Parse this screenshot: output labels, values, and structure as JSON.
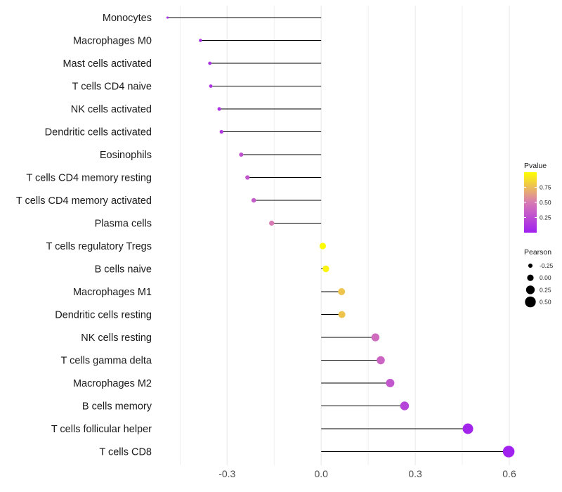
{
  "chart_data": {
    "type": "lollipop",
    "orientation": "horizontal",
    "xlim": [
      -0.5,
      0.6
    ],
    "xticks": [
      {
        "value": -0.3,
        "label": "-0.3"
      },
      {
        "value": 0.0,
        "label": "0.0"
      },
      {
        "value": 0.3,
        "label": "0.3"
      },
      {
        "value": 0.6,
        "label": "0.6"
      }
    ],
    "minor_gridlines": [
      -0.45,
      -0.15,
      0.15,
      0.45
    ],
    "points": [
      {
        "label": "Monocytes",
        "value": -0.49,
        "pvalue": 0.02
      },
      {
        "label": "Macrophages M0",
        "value": -0.385,
        "pvalue": 0.08
      },
      {
        "label": "Mast cells activated",
        "value": -0.355,
        "pvalue": 0.1
      },
      {
        "label": "T cells CD4 naive",
        "value": -0.352,
        "pvalue": 0.11
      },
      {
        "label": "NK cells activated",
        "value": -0.325,
        "pvalue": 0.12
      },
      {
        "label": "Dendritic cells activated",
        "value": -0.318,
        "pvalue": 0.13
      },
      {
        "label": "Eosinophils",
        "value": -0.255,
        "pvalue": 0.28
      },
      {
        "label": "T cells CD4 memory resting",
        "value": -0.235,
        "pvalue": 0.3
      },
      {
        "label": "T cells CD4 memory activated",
        "value": -0.215,
        "pvalue": 0.33
      },
      {
        "label": "Plasma cells",
        "value": -0.158,
        "pvalue": 0.5
      },
      {
        "label": "T cells regulatory  Tregs ",
        "value": 0.005,
        "pvalue": 0.99
      },
      {
        "label": "B cells naive",
        "value": 0.015,
        "pvalue": 0.96
      },
      {
        "label": "Macrophages M1",
        "value": 0.065,
        "pvalue": 0.78
      },
      {
        "label": "Dendritic cells resting",
        "value": 0.066,
        "pvalue": 0.78
      },
      {
        "label": "NK cells resting",
        "value": 0.173,
        "pvalue": 0.42
      },
      {
        "label": "T cells gamma delta",
        "value": 0.19,
        "pvalue": 0.38
      },
      {
        "label": "Macrophages M2",
        "value": 0.22,
        "pvalue": 0.3
      },
      {
        "label": "B cells memory",
        "value": 0.266,
        "pvalue": 0.2
      },
      {
        "label": "T cells follicular helper",
        "value": 0.468,
        "pvalue": 0.03
      },
      {
        "label": "T cells CD8",
        "value": 0.598,
        "pvalue": 0.01
      }
    ],
    "legend_pvalue": {
      "title": "Pvalue",
      "ticks": [
        {
          "value": 0.25,
          "label": "0.25"
        },
        {
          "value": 0.5,
          "label": "0.50"
        },
        {
          "value": 0.75,
          "label": "0.75"
        }
      ],
      "range": [
        0.0,
        1.0
      ]
    },
    "legend_pearson": {
      "title": "Pearson",
      "entries": [
        {
          "value": -0.25,
          "label": "-0.25"
        },
        {
          "value": 0.0,
          "label": "0.00"
        },
        {
          "value": 0.25,
          "label": "0.25"
        },
        {
          "value": 0.5,
          "label": "0.50"
        }
      ]
    },
    "colors": {
      "low": "#a020f0",
      "mid": "#d87ab4",
      "high": "#ffff00",
      "stem": "#000000",
      "grid": "#ebebeb",
      "legend_dot": "#000000"
    }
  }
}
